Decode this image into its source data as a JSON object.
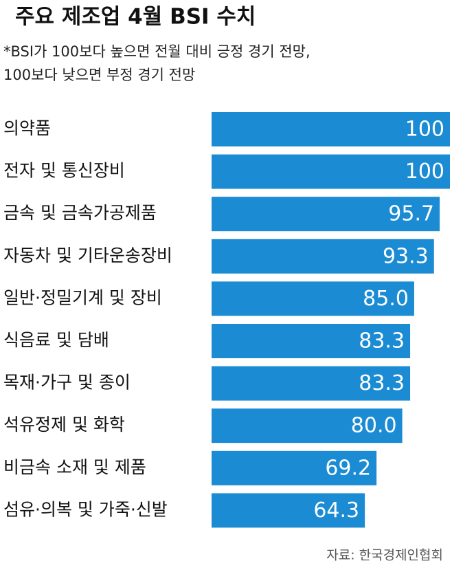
{
  "chart_data": {
    "type": "bar",
    "orientation": "horizontal",
    "title": "주요 제조업 4월 BSI 수치",
    "subtitle": [
      "*BSI가 100보다 높으면 전월 대비 긍정 경기 전망,",
      "100보다 낮으면 부정 경기 전망"
    ],
    "categories": [
      "의약품",
      "전자 및 통신장비",
      "금속 및 금속가공제품",
      "자동차 및 기타운송장비",
      "일반·정밀기계 및 장비",
      "식음료 및 담배",
      "목재·가구 및 종이",
      "석유정제 및 화학",
      "비금속 소재 및 제품",
      "섬유·의복 및 가죽·신발"
    ],
    "values": [
      100,
      100,
      95.7,
      93.3,
      85.0,
      83.3,
      83.3,
      80.0,
      69.2,
      64.3
    ],
    "value_labels": [
      "100",
      "100",
      "95.7",
      "93.3",
      "85.0",
      "83.3",
      "83.3",
      "80.0",
      "69.2",
      "64.3"
    ],
    "color": "#1b8bd3",
    "source": "자료: 한국경제인협회"
  }
}
